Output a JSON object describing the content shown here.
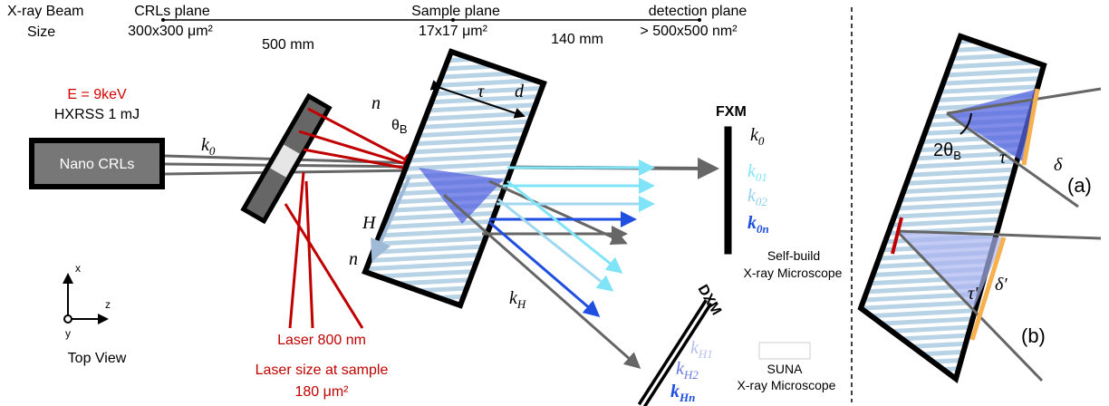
{
  "beam_size": {
    "title": [
      "X-ray Beam",
      "Size"
    ],
    "planes": [
      {
        "name": "CRLs plane",
        "size": "300x300 μm²"
      },
      {
        "name": "Sample plane",
        "size": "17x17 μm²"
      },
      {
        "name": "detection plane",
        "size": "> 500x500 nm²"
      }
    ],
    "distances": [
      "500 mm",
      "140 mm"
    ]
  },
  "source": {
    "energy": "E = 9keV",
    "pulse": "HXRSS 1 mJ",
    "lens": "Nano CRLs",
    "beam": {
      "base": "k",
      "sub": "0"
    }
  },
  "laser": {
    "wavelength": "Laser 800 nm",
    "size_label": "Laser size at sample",
    "size": "180 μm²"
  },
  "crystal": {
    "normal_top": "n",
    "bragg": {
      "base": "θ",
      "sub": "B"
    },
    "thickness": "τ",
    "spacing": "d",
    "reciprocal": "H",
    "normal_bottom": "n",
    "diffracted": {
      "base": "k",
      "sub": "H"
    }
  },
  "fxm": {
    "label": "FXM",
    "beams": [
      {
        "base": "k",
        "sub": "0"
      },
      {
        "base": "k",
        "sub": "01"
      },
      {
        "base": "k",
        "sub": "02"
      },
      {
        "base": "k",
        "sub": "0n"
      }
    ],
    "caption": [
      "Self-build",
      "X-ray Microscope"
    ]
  },
  "dxm": {
    "label": "DXM",
    "beams": [
      {
        "base": "k",
        "sub": "H1"
      },
      {
        "base": "k",
        "sub": "H2"
      },
      {
        "base": "k",
        "sub": "Hn"
      }
    ],
    "detector": "SUNA",
    "caption": "X-ray Microscope"
  },
  "axes": {
    "x": "x",
    "z": "z",
    "y": "y",
    "caption": "Top View"
  },
  "inset": {
    "angle": {
      "base": "2θ",
      "sub": "B"
    },
    "tau": "τ",
    "delta": "δ",
    "case_a": "(a)",
    "tau_prime": "τ'",
    "delta_prime": "δ′",
    "case_b": "(b)"
  }
}
